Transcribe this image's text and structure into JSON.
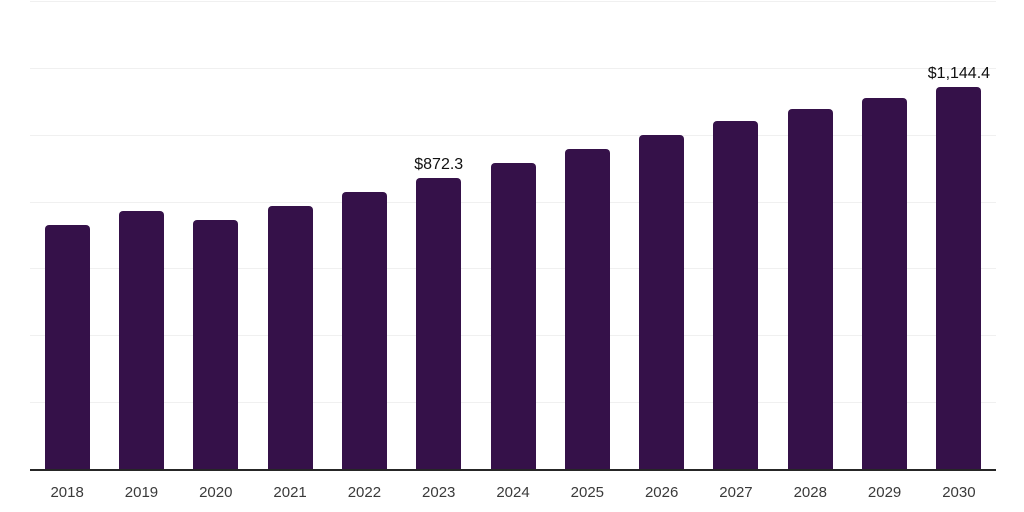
{
  "chart_data": {
    "type": "bar",
    "title": "",
    "xlabel": "",
    "ylabel": "",
    "categories": [
      "2018",
      "2019",
      "2020",
      "2021",
      "2022",
      "2023",
      "2024",
      "2025",
      "2026",
      "2027",
      "2028",
      "2029",
      "2030"
    ],
    "values": [
      733,
      775,
      749,
      790,
      833,
      872.3,
      917,
      959,
      1001,
      1043,
      1081,
      1114,
      1144.4
    ],
    "ylim": [
      0,
      1400
    ],
    "grid_step": 200,
    "grid": true,
    "legend": false,
    "y_tick_labels_visible": false,
    "annotations": [
      {
        "category": "2023",
        "label": "$872.3"
      },
      {
        "category": "2030",
        "label": "$1,144.4"
      }
    ],
    "colors": {
      "bar": "#351149",
      "gridline": "#f0f0f0",
      "axis_line": "#262626",
      "tick_label": "#3a3a3a",
      "value_label": "#111111",
      "background": "#ffffff"
    }
  }
}
